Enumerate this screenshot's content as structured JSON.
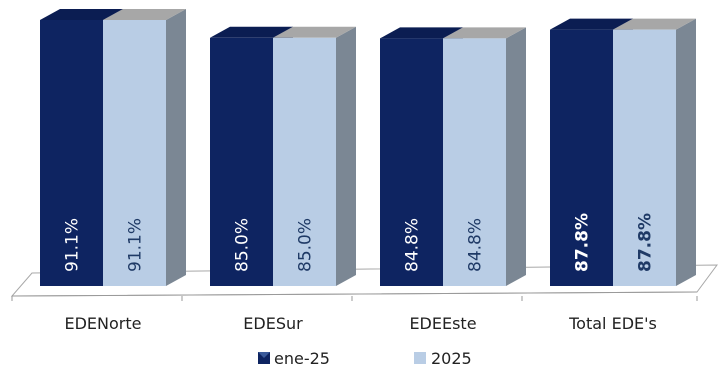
{
  "chart_data": {
    "type": "bar",
    "categories": [
      "EDENorte",
      "EDESur",
      "EDEEste",
      "Total EDE's"
    ],
    "series": [
      {
        "name": "ene-25",
        "values": [
          91.1,
          85.0,
          84.8,
          87.8
        ],
        "labels": [
          "91.1%",
          "85.0%",
          "84.8%",
          "87.8%"
        ],
        "color": "#0e2461"
      },
      {
        "name": "2025",
        "values": [
          91.1,
          85.0,
          84.8,
          87.8
        ],
        "labels": [
          "91.1%",
          "85.0%",
          "84.8%",
          "87.8%"
        ],
        "color": "#b9cde5"
      }
    ],
    "bold_labels": [
      "87.8%"
    ],
    "ylim": [
      0,
      100
    ],
    "three_d": true,
    "grid": false,
    "legend_position": "bottom"
  }
}
